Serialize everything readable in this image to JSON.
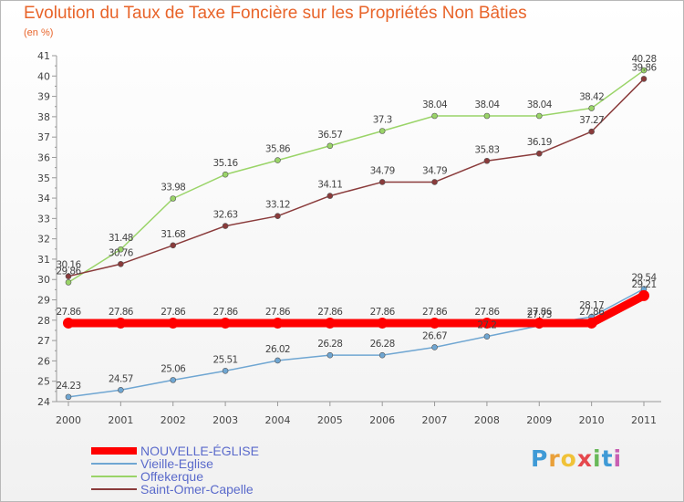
{
  "title": "Evolution du Taux de Taxe Foncière sur les Propriétés Non Bâties",
  "subtitle": "(en %)",
  "logo": "Proxiti",
  "chart_data": {
    "type": "line",
    "x": [
      "2000",
      "2001",
      "2002",
      "2003",
      "2004",
      "2005",
      "2006",
      "2007",
      "2008",
      "2009",
      "2010",
      "2011"
    ],
    "ylim": [
      24,
      41
    ],
    "yticks": [
      24,
      25,
      26,
      27,
      28,
      29,
      30,
      31,
      32,
      33,
      34,
      35,
      36,
      37,
      38,
      39,
      40,
      41
    ],
    "grid": false,
    "legend_position": "bottom-left",
    "series": [
      {
        "name": "NOUVELLE-ÉGLISE",
        "color": "#ff0000",
        "width": 9,
        "values": [
          27.86,
          27.86,
          27.86,
          27.86,
          27.86,
          27.86,
          27.86,
          27.86,
          27.86,
          27.86,
          27.86,
          29.21
        ],
        "labels": [
          "27.86",
          "27.86",
          "27.86",
          "27.86",
          "27.86",
          "27.86",
          "27.86",
          "27.86",
          "27.86",
          "27.86",
          "27.86",
          "29.21"
        ]
      },
      {
        "name": "Vieille-Eglise",
        "color": "#6fa6d2",
        "width": 1.5,
        "values": [
          24.23,
          24.57,
          25.06,
          25.51,
          26.02,
          26.28,
          26.28,
          26.67,
          27.2,
          27.73,
          28.17,
          29.54
        ],
        "labels": [
          "24.23",
          "24.57",
          "25.06",
          "25.51",
          "26.02",
          "26.28",
          "26.28",
          "26.67",
          "27.2",
          "27.73",
          "28.17",
          "29.54"
        ]
      },
      {
        "name": "Offekerque",
        "color": "#9ad468",
        "width": 1.5,
        "values": [
          29.86,
          31.48,
          33.98,
          35.16,
          35.86,
          36.57,
          37.3,
          38.04,
          38.04,
          38.04,
          38.42,
          40.28
        ],
        "labels": [
          "29.86",
          "31.48",
          "33.98",
          "35.16",
          "35.86",
          "36.57",
          "37.3",
          "38.04",
          "38.04",
          "38.04",
          "38.42",
          "40.28"
        ]
      },
      {
        "name": "Saint-Omer-Capelle",
        "color": "#8a3b3b",
        "width": 1.5,
        "values": [
          30.16,
          30.76,
          31.68,
          32.63,
          33.12,
          34.11,
          34.79,
          34.79,
          35.83,
          36.19,
          37.27,
          39.86
        ],
        "labels": [
          "30.16",
          "30.76",
          "31.68",
          "32.63",
          "33.12",
          "34.11",
          "34.79",
          "34.79",
          "35.83",
          "36.19",
          "37.27",
          "39.86"
        ]
      }
    ]
  }
}
